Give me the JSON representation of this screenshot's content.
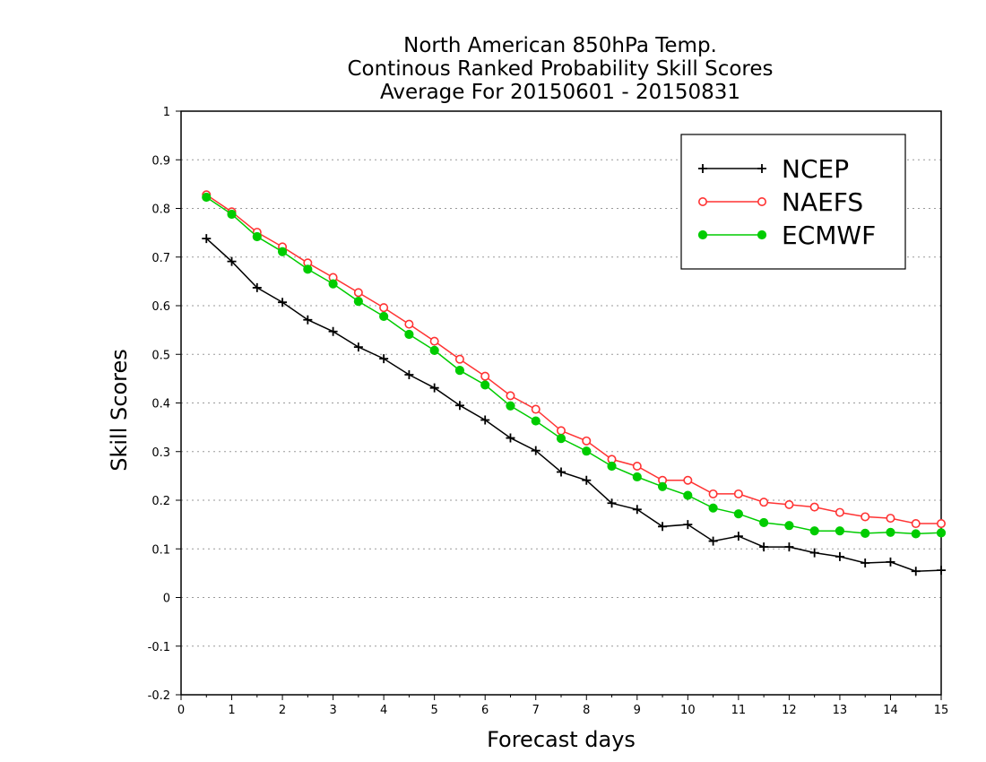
{
  "chart_data": {
    "type": "line",
    "title_lines": [
      "North American 850hPa Temp.",
      "Continous Ranked Probability Skill Scores",
      "Average For 20150601 - 20150831"
    ],
    "xlabel": "Forecast days",
    "ylabel": "Skill Scores",
    "xlim": [
      0,
      15
    ],
    "ylim": [
      -0.2,
      1
    ],
    "x_ticks": [
      0,
      1,
      2,
      3,
      4,
      5,
      6,
      7,
      8,
      9,
      10,
      11,
      12,
      13,
      14,
      15
    ],
    "x_tick_labels": [
      "0",
      "1",
      "2",
      "3",
      "4",
      "5",
      "6",
      "7",
      "8",
      "9",
      "10",
      "11",
      "12",
      "13",
      "14",
      "15"
    ],
    "y_ticks": [
      -0.2,
      -0.1,
      0,
      0.1,
      0.2,
      0.3,
      0.4,
      0.5,
      0.6,
      0.7,
      0.8,
      0.9,
      1
    ],
    "y_tick_labels": [
      "-0.2",
      "-0.1",
      "0",
      "0.1",
      "0.2",
      "0.3",
      "0.4",
      "0.5",
      "0.6",
      "0.7",
      "0.8",
      "0.9",
      "1"
    ],
    "grid": "horizontal dotted",
    "legend_position": "top-right",
    "x": [
      0.5,
      1,
      1.5,
      2,
      2.5,
      3,
      3.5,
      4,
      4.5,
      5,
      5.5,
      6,
      6.5,
      7,
      7.5,
      8,
      8.5,
      9,
      9.5,
      10,
      10.5,
      11,
      11.5,
      12,
      12.5,
      13,
      13.5,
      14,
      14.5,
      15
    ],
    "series": [
      {
        "name": "NCEP",
        "color": "#000000",
        "marker": "plus",
        "values": [
          0.738,
          0.691,
          0.637,
          0.607,
          0.571,
          0.547,
          0.515,
          0.491,
          0.458,
          0.431,
          0.395,
          0.365,
          0.328,
          0.302,
          0.258,
          0.241,
          0.194,
          0.181,
          0.146,
          0.15,
          0.116,
          0.126,
          0.104,
          0.104,
          0.092,
          0.084,
          0.071,
          0.073,
          0.054,
          0.056
        ]
      },
      {
        "name": "NAEFS",
        "color": "#ff3333",
        "marker": "open-circle",
        "values": [
          0.828,
          0.793,
          0.751,
          0.721,
          0.688,
          0.658,
          0.627,
          0.596,
          0.562,
          0.527,
          0.49,
          0.455,
          0.415,
          0.387,
          0.343,
          0.322,
          0.284,
          0.27,
          0.241,
          0.241,
          0.213,
          0.213,
          0.196,
          0.191,
          0.186,
          0.175,
          0.166,
          0.163,
          0.152,
          0.152
        ]
      },
      {
        "name": "ECMWF",
        "color": "#00cc00",
        "marker": "filled-circle",
        "values": [
          0.823,
          0.788,
          0.742,
          0.711,
          0.675,
          0.645,
          0.609,
          0.578,
          0.541,
          0.508,
          0.467,
          0.437,
          0.394,
          0.363,
          0.327,
          0.301,
          0.27,
          0.248,
          0.228,
          0.21,
          0.184,
          0.172,
          0.154,
          0.148,
          0.137,
          0.137,
          0.132,
          0.134,
          0.131,
          0.133
        ]
      }
    ]
  }
}
